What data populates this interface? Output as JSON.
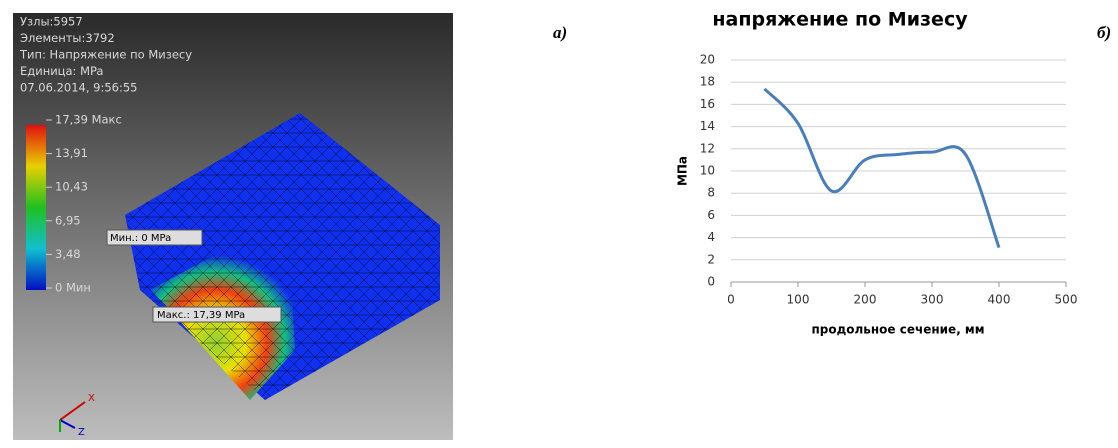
{
  "fea_panel": {
    "info": [
      "Узлы:5957",
      "Элементы:3792",
      "Тип: Напряжение по Мизесу",
      "Единица: MPa",
      "07.06.2014, 9:56:55"
    ],
    "legend": [
      "17,39 Макс",
      "13,91",
      "10,43",
      "6,95",
      "3,48",
      "0 Мин"
    ],
    "min_callout": "Мин.: 0 MPa",
    "max_callout": "Макс.: 17,39 MPa",
    "axis_x": "X",
    "axis_z": "Z"
  },
  "panel_labels": {
    "a": "а)",
    "b": "б)"
  },
  "chart_data": {
    "type": "line",
    "title": "напряжение по Мизесу",
    "x_label": "продольное сечение, мм",
    "y_label": "МПа",
    "x": [
      50,
      100,
      150,
      200,
      250,
      300,
      350,
      400
    ],
    "values": [
      17.4,
      14.3,
      8.2,
      11.0,
      11.5,
      11.7,
      11.5,
      3.1
    ],
    "color": "#4a7ebb",
    "xlim": [
      0,
      500
    ],
    "xticks": [
      0,
      100,
      200,
      300,
      400,
      500
    ],
    "ylim": [
      0,
      20
    ],
    "yticks": [
      0,
      2,
      4,
      6,
      8,
      10,
      12,
      14,
      16,
      18,
      20
    ],
    "grid": true
  }
}
